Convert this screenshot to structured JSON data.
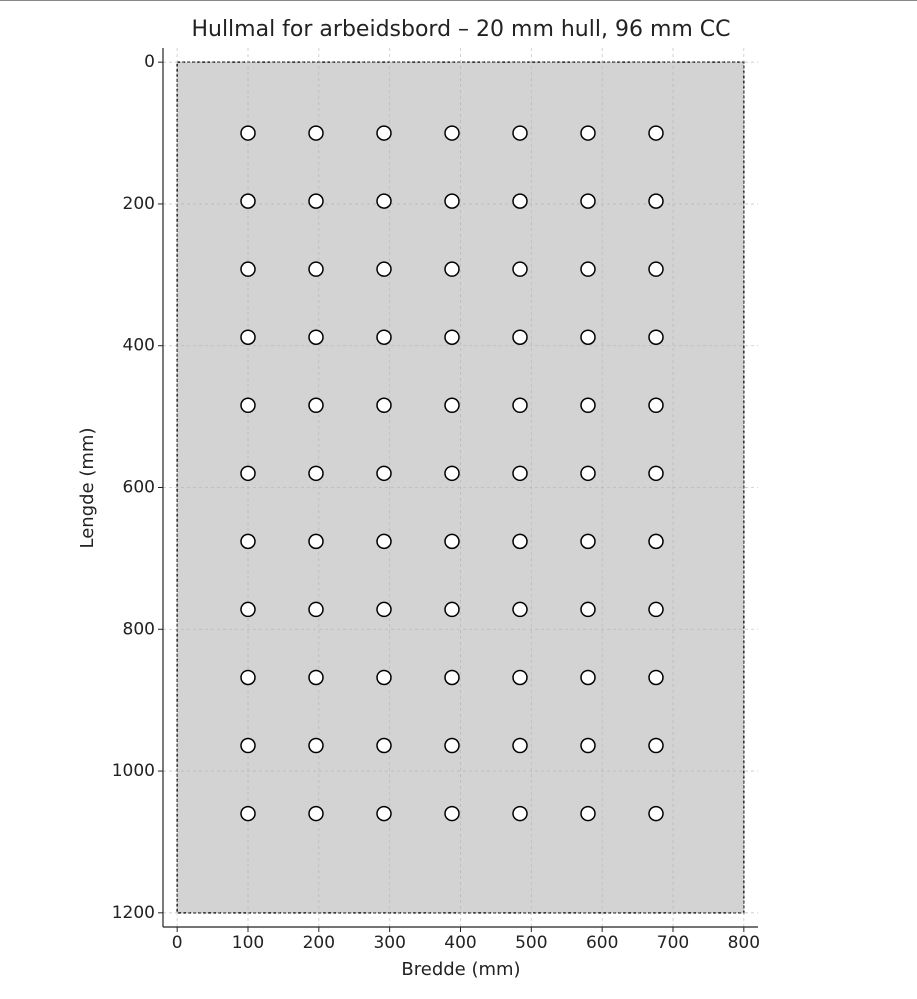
{
  "chart_data": {
    "type": "scatter",
    "title": "Hullmal for arbeidsbord – 20 mm hull, 96 mm CC",
    "x_label": "Bredde (mm)",
    "y_label": "Lengde (mm)",
    "board_width": 800,
    "board_length": 1200,
    "board_color": "#d3d3d3",
    "x": [
      100,
      196,
      292,
      388,
      484,
      580,
      676,
      100,
      196,
      292,
      388,
      484,
      580,
      676,
      100,
      196,
      292,
      388,
      484,
      580,
      676,
      100,
      196,
      292,
      388,
      484,
      580,
      676,
      100,
      196,
      292,
      388,
      484,
      580,
      676,
      100,
      196,
      292,
      388,
      484,
      580,
      676,
      100,
      196,
      292,
      388,
      484,
      580,
      676,
      100,
      196,
      292,
      388,
      484,
      580,
      676,
      100,
      196,
      292,
      388,
      484,
      580,
      676,
      100,
      196,
      292,
      388,
      484,
      580,
      676,
      100,
      196,
      292,
      388,
      484,
      580,
      676
    ],
    "y": [
      100,
      100,
      100,
      100,
      100,
      100,
      100,
      196,
      196,
      196,
      196,
      196,
      196,
      196,
      292,
      292,
      292,
      292,
      292,
      292,
      292,
      388,
      388,
      388,
      388,
      388,
      388,
      388,
      484,
      484,
      484,
      484,
      484,
      484,
      484,
      580,
      580,
      580,
      580,
      580,
      580,
      580,
      676,
      676,
      676,
      676,
      676,
      676,
      676,
      772,
      772,
      772,
      772,
      772,
      772,
      772,
      868,
      868,
      868,
      868,
      868,
      868,
      868,
      964,
      964,
      964,
      964,
      964,
      964,
      964,
      1060,
      1060,
      1060,
      1060,
      1060,
      1060,
      1060
    ],
    "color": "#ffffff",
    "xlim": [
      -20,
      820
    ],
    "ylim": [
      1220,
      -20
    ],
    "xticks": [
      0,
      100,
      200,
      300,
      400,
      500,
      600,
      700,
      800
    ],
    "yticks": [
      0,
      200,
      400,
      600,
      800,
      1000,
      1200
    ],
    "grid": true
  }
}
